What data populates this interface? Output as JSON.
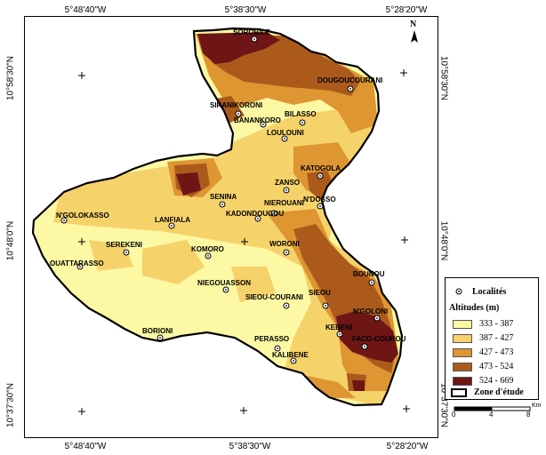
{
  "coords": {
    "top": [
      "5°48'40\"W",
      "5°38'30\"W",
      "5°28'20\"W"
    ],
    "bottom": [
      "5°48'40\"W",
      "5°38'30\"W",
      "5°28'20\"W"
    ],
    "left": [
      "10°58'30\"N",
      "10°48'0\"N",
      "10°37'30\"N"
    ],
    "right": [
      "10°58'30\"N",
      "10°48'0\"N",
      "10°37'30\"N"
    ]
  },
  "north_label": "N",
  "places": [
    {
      "name": "SOROBILE"
    },
    {
      "name": "DOUGOUCOURANI"
    },
    {
      "name": "SIRANIKORONI"
    },
    {
      "name": "BILASSO"
    },
    {
      "name": "BANANKORO"
    },
    {
      "name": "LOULOUNI"
    },
    {
      "name": "KATOGOLA"
    },
    {
      "name": "ZANSO"
    },
    {
      "name": "SENINA"
    },
    {
      "name": "NIEROUANI"
    },
    {
      "name": "N'DOSSO"
    },
    {
      "name": "KADONDOUGOU"
    },
    {
      "name": "N'GOLOKASSO"
    },
    {
      "name": "LANFIALA"
    },
    {
      "name": "SEREKENI"
    },
    {
      "name": "KOMORO"
    },
    {
      "name": "WORONI"
    },
    {
      "name": "OUATTARASSO"
    },
    {
      "name": "BOUNOU"
    },
    {
      "name": "NIEGOUASSON"
    },
    {
      "name": "SIEOU-COURANI"
    },
    {
      "name": "SIEOU"
    },
    {
      "name": "N'GOLONI"
    },
    {
      "name": "KEBENI"
    },
    {
      "name": "FACO-COUROU"
    },
    {
      "name": "BORIONI"
    },
    {
      "name": "PERASSO"
    },
    {
      "name": "KALIBENE"
    }
  ],
  "legend": {
    "localites_label": "Localités",
    "altitude_title": "Altitudes (m)",
    "classes": [
      {
        "label": "333 - 387",
        "color": "#fcf8a4"
      },
      {
        "label": "387 - 427",
        "color": "#f6d26a"
      },
      {
        "label": "427 - 473",
        "color": "#dd9632"
      },
      {
        "label": "473 - 524",
        "color": "#ac5a1c"
      },
      {
        "label": "524 - 669",
        "color": "#6e1616"
      }
    ],
    "zone_label": "Zone d'étude"
  },
  "scale": {
    "ticks": [
      "0",
      "4",
      "8"
    ],
    "unit": "Km"
  }
}
